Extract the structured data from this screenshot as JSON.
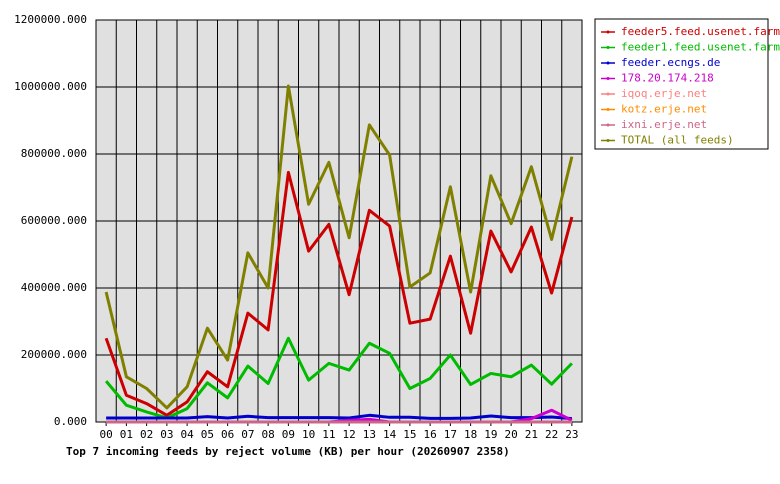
{
  "chart_data": {
    "type": "line",
    "title": "Top 7 incoming feeds by reject volume (KB) per hour (20260907 2358)",
    "categories": [
      "00",
      "01",
      "02",
      "03",
      "04",
      "05",
      "06",
      "07",
      "08",
      "09",
      "10",
      "11",
      "12",
      "13",
      "14",
      "15",
      "16",
      "17",
      "18",
      "19",
      "20",
      "21",
      "22",
      "23"
    ],
    "ylim": [
      0,
      1200000
    ],
    "yticks": [
      {
        "value": 0,
        "label": "0.000"
      },
      {
        "value": 200000,
        "label": "200000.000"
      },
      {
        "value": 400000,
        "label": "400000.000"
      },
      {
        "value": 600000,
        "label": "600000.000"
      },
      {
        "value": 800000,
        "label": "800000.000"
      },
      {
        "value": 1000000,
        "label": "1000000.000"
      },
      {
        "value": 1200000,
        "label": "1200000.000"
      }
    ],
    "grid": true,
    "legend": "right",
    "series": [
      {
        "name": "feeder5.feed.usenet.farm",
        "color": "#cc0000",
        "values": [
          250000,
          80000,
          55000,
          20000,
          60000,
          150000,
          105000,
          325000,
          275000,
          745000,
          510000,
          590000,
          380000,
          632000,
          585000,
          295000,
          307000,
          495000,
          265000,
          570000,
          448000,
          582000,
          385000,
          612000
        ]
      },
      {
        "name": "feeder1.feed.usenet.farm",
        "color": "#00bb00",
        "values": [
          122000,
          50000,
          30000,
          12000,
          40000,
          117000,
          72000,
          167000,
          115000,
          250000,
          125000,
          175000,
          155000,
          235000,
          205000,
          100000,
          130000,
          200000,
          112000,
          145000,
          135000,
          170000,
          113000,
          175000
        ]
      },
      {
        "name": "feeder.ecngs.de",
        "color": "#0000cc",
        "values": [
          12000,
          12000,
          12000,
          12000,
          12000,
          16000,
          12000,
          17000,
          13000,
          13000,
          13000,
          13000,
          12000,
          20000,
          14000,
          14000,
          11000,
          11000,
          12000,
          18000,
          13000,
          13000,
          15000,
          10000
        ]
      },
      {
        "name": "178.20.174.218",
        "color": "#cc00cc",
        "values": [
          0,
          0,
          0,
          0,
          0,
          0,
          0,
          0,
          0,
          0,
          0,
          0,
          5000,
          8000,
          0,
          0,
          0,
          0,
          0,
          0,
          0,
          10000,
          35000,
          5000
        ]
      },
      {
        "name": "iqoq.erje.net",
        "color": "#ff7f7f",
        "values": [
          0,
          0,
          0,
          0,
          0,
          0,
          0,
          0,
          0,
          0,
          0,
          0,
          0,
          0,
          0,
          0,
          0,
          0,
          0,
          0,
          0,
          0,
          0,
          0
        ]
      },
      {
        "name": "kotz.erje.net",
        "color": "#ff8c00",
        "values": [
          0,
          0,
          0,
          0,
          0,
          0,
          0,
          0,
          0,
          0,
          0,
          0,
          0,
          0,
          0,
          0,
          0,
          0,
          0,
          0,
          0,
          0,
          0,
          0
        ]
      },
      {
        "name": "ixni.erje.net",
        "color": "#cc6688",
        "values": [
          0,
          0,
          0,
          0,
          0,
          0,
          0,
          0,
          0,
          0,
          0,
          0,
          0,
          0,
          0,
          0,
          0,
          0,
          0,
          0,
          0,
          0,
          0,
          0
        ]
      },
      {
        "name": "TOTAL (all feeds)",
        "color": "#808000",
        "values": [
          388000,
          135000,
          100000,
          42000,
          105000,
          280000,
          185000,
          505000,
          400000,
          1003000,
          650000,
          775000,
          550000,
          887000,
          797000,
          403000,
          445000,
          702000,
          388000,
          735000,
          592000,
          762000,
          545000,
          792000
        ]
      }
    ]
  }
}
